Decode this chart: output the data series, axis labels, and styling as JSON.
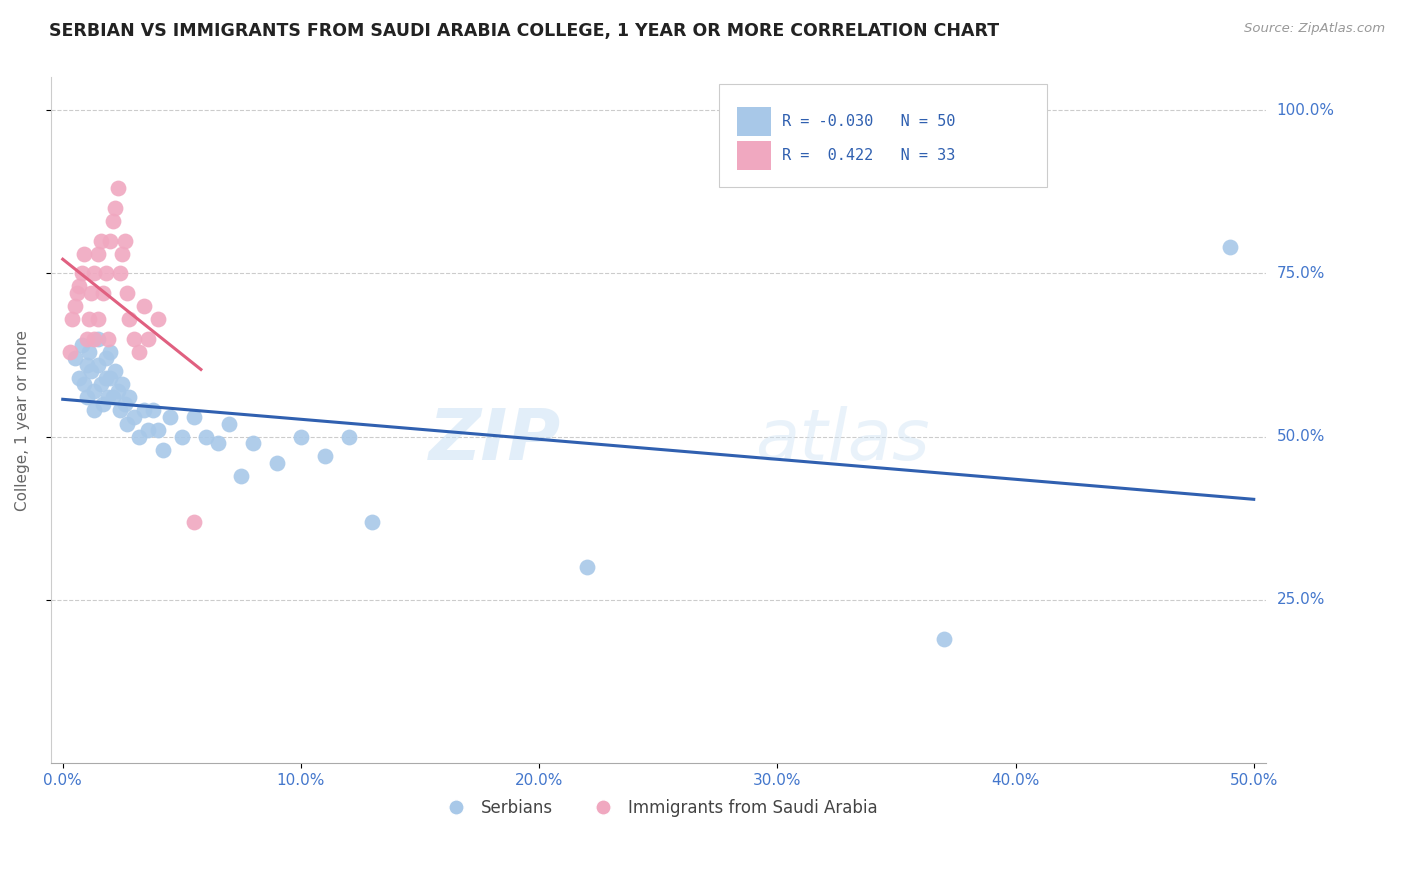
{
  "title": "SERBIAN VS IMMIGRANTS FROM SAUDI ARABIA COLLEGE, 1 YEAR OR MORE CORRELATION CHART",
  "source": "Source: ZipAtlas.com",
  "xlabel_ticks": [
    "0.0%",
    "10.0%",
    "20.0%",
    "30.0%",
    "40.0%",
    "50.0%"
  ],
  "xlabel_tick_vals": [
    0,
    0.1,
    0.2,
    0.3,
    0.4,
    0.5
  ],
  "ylabel": "College, 1 year or more",
  "ylabel_ticks": [
    "100.0%",
    "75.0%",
    "50.0%",
    "25.0%"
  ],
  "ylabel_tick_vals": [
    1.0,
    0.75,
    0.5,
    0.25
  ],
  "xlim": [
    -0.005,
    0.505
  ],
  "ylim": [
    0,
    1.05
  ],
  "r_serbian": -0.03,
  "n_serbian": 50,
  "r_saudi": 0.422,
  "n_saudi": 33,
  "legend_labels": [
    "Serbians",
    "Immigrants from Saudi Arabia"
  ],
  "serbian_color": "#a8c8e8",
  "saudi_color": "#f0a8c0",
  "serbian_line_color": "#3060b0",
  "saudi_line_color": "#e06080",
  "watermark_text": "ZIP",
  "watermark_text2": "atlas",
  "serbian_scatter_x": [
    0.005,
    0.007,
    0.008,
    0.009,
    0.01,
    0.01,
    0.011,
    0.012,
    0.013,
    0.013,
    0.015,
    0.015,
    0.016,
    0.017,
    0.018,
    0.018,
    0.019,
    0.02,
    0.02,
    0.021,
    0.022,
    0.023,
    0.024,
    0.025,
    0.026,
    0.027,
    0.028,
    0.03,
    0.032,
    0.034,
    0.036,
    0.038,
    0.04,
    0.042,
    0.045,
    0.05,
    0.055,
    0.06,
    0.065,
    0.07,
    0.075,
    0.08,
    0.09,
    0.1,
    0.11,
    0.12,
    0.13,
    0.22,
    0.37,
    0.49
  ],
  "serbian_scatter_y": [
    0.62,
    0.59,
    0.64,
    0.58,
    0.61,
    0.56,
    0.63,
    0.6,
    0.57,
    0.54,
    0.65,
    0.61,
    0.58,
    0.55,
    0.62,
    0.59,
    0.56,
    0.63,
    0.59,
    0.56,
    0.6,
    0.57,
    0.54,
    0.58,
    0.55,
    0.52,
    0.56,
    0.53,
    0.5,
    0.54,
    0.51,
    0.54,
    0.51,
    0.48,
    0.53,
    0.5,
    0.53,
    0.5,
    0.49,
    0.52,
    0.44,
    0.49,
    0.46,
    0.5,
    0.47,
    0.5,
    0.37,
    0.3,
    0.19,
    0.79
  ],
  "saudi_scatter_x": [
    0.003,
    0.004,
    0.005,
    0.006,
    0.007,
    0.008,
    0.009,
    0.01,
    0.011,
    0.012,
    0.013,
    0.013,
    0.015,
    0.015,
    0.016,
    0.017,
    0.018,
    0.019,
    0.02,
    0.021,
    0.022,
    0.023,
    0.024,
    0.025,
    0.026,
    0.027,
    0.028,
    0.03,
    0.032,
    0.034,
    0.036,
    0.04,
    0.055
  ],
  "saudi_scatter_y": [
    0.63,
    0.68,
    0.7,
    0.72,
    0.73,
    0.75,
    0.78,
    0.65,
    0.68,
    0.72,
    0.75,
    0.65,
    0.78,
    0.68,
    0.8,
    0.72,
    0.75,
    0.65,
    0.8,
    0.83,
    0.85,
    0.88,
    0.75,
    0.78,
    0.8,
    0.72,
    0.68,
    0.65,
    0.63,
    0.7,
    0.65,
    0.68,
    0.37
  ]
}
